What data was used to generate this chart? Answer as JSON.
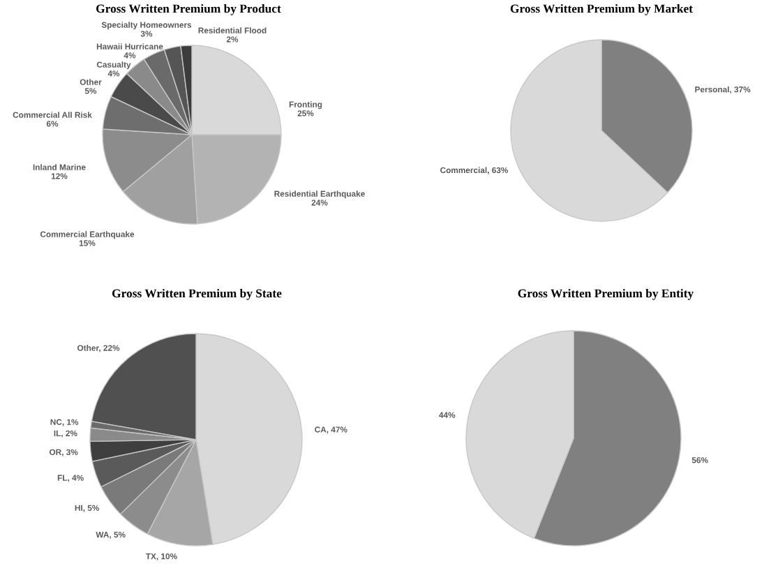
{
  "chart_data": [
    {
      "type": "pie",
      "title": "Gross Written Premium by Product",
      "categories": [
        "Fronting",
        "Residential Earthquake",
        "Commercial Earthquake",
        "Inland Marine",
        "Commercial All Risk",
        "Other",
        "Casualty",
        "Hawaii Hurricane",
        "Specialty Homeowners",
        "Residential Flood"
      ],
      "values": [
        25,
        24,
        15,
        12,
        6,
        5,
        4,
        4,
        3,
        2
      ],
      "value_labels": [
        "25%",
        "24%",
        "15%",
        "12%",
        "6%",
        "5%",
        "4%",
        "4%",
        "3%",
        "2%"
      ],
      "colors": [
        "#d9d9d9",
        "#b3b3b3",
        "#a0a0a0",
        "#8c8c8c",
        "#6e6e6e",
        "#4a4a4a",
        "#8a8a8a",
        "#6a6a6a",
        "#555555",
        "#3c3c3c"
      ]
    },
    {
      "type": "pie",
      "title": "Gross Written Premium by Market",
      "categories": [
        "Personal",
        "Commercial"
      ],
      "values": [
        37,
        63
      ],
      "value_labels": [
        "37%",
        "63%"
      ],
      "colors": [
        "#808080",
        "#d9d9d9"
      ]
    },
    {
      "type": "pie",
      "title": "Gross Written Premium by State",
      "categories": [
        "CA",
        "TX",
        "WA",
        "HI",
        "FL",
        "OR",
        "IL",
        "NC",
        "Other"
      ],
      "values": [
        47,
        10,
        5,
        5,
        4,
        3,
        2,
        1,
        22
      ],
      "value_labels": [
        "47%",
        "10%",
        "5%",
        "5%",
        "4%",
        "3%",
        "2%",
        "1%",
        "22%"
      ],
      "colors": [
        "#d9d9d9",
        "#a6a6a6",
        "#8c8c8c",
        "#7a7a7a",
        "#5a5a5a",
        "#3f3f3f",
        "#8a8a8a",
        "#6a6a6a",
        "#505050"
      ]
    },
    {
      "type": "pie",
      "title": "Gross Written Premium by Entity",
      "categories": [
        null,
        null
      ],
      "values": [
        56,
        44
      ],
      "value_labels": [
        "56%",
        "44%"
      ],
      "colors": [
        "#808080",
        "#d9d9d9"
      ]
    }
  ]
}
